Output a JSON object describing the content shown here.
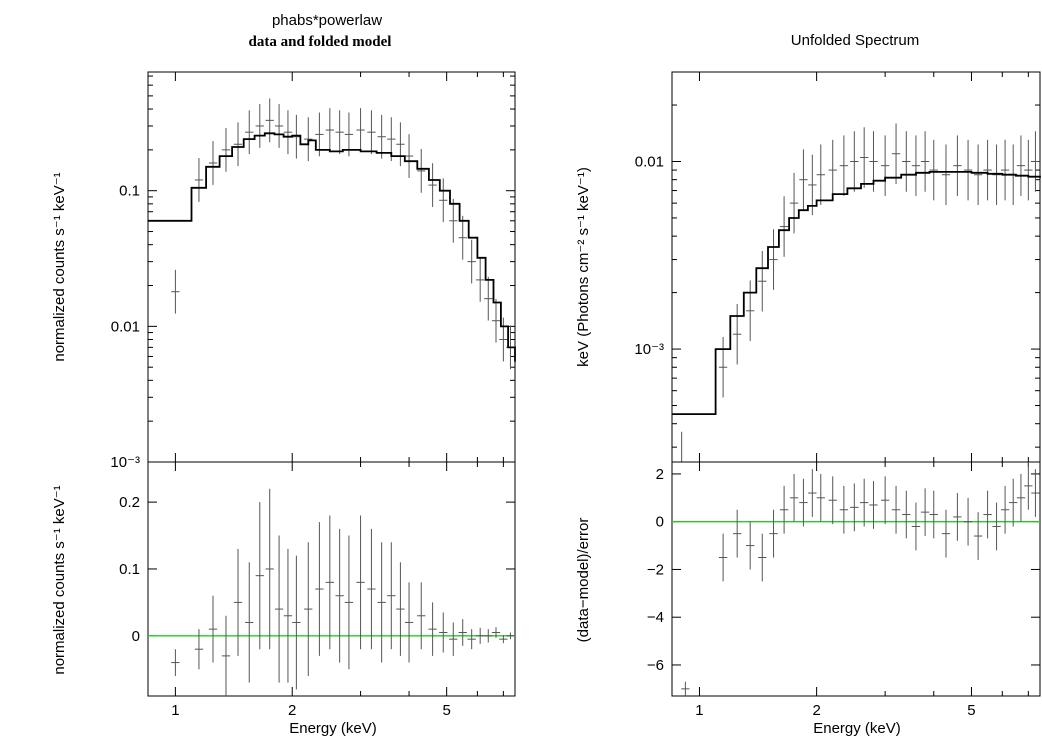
{
  "left_panel": {
    "title_line1": "phabs*powerlaw",
    "title_line2": "data and folded model",
    "top_ylabel": "normalized counts s⁻¹ keV⁻¹",
    "bottom_ylabel": "normalized counts s⁻¹ keV⁻¹",
    "xlabel": "Energy (keV)"
  },
  "right_panel": {
    "title": "Unfolded Spectrum",
    "top_ylabel": "keV (Photons cm⁻² s⁻¹ keV⁻¹)",
    "bottom_ylabel": "(data−model)/error",
    "xlabel": "Energy (keV)"
  },
  "colors": {
    "data": "#555555",
    "model": "#000000",
    "zero_line": "#22cc22"
  },
  "chart_data": [
    {
      "type": "scatter",
      "panel": "left-top",
      "title": "phabs*powerlaw",
      "subtitle": "data and folded model",
      "xlabel": "Energy (keV)",
      "ylabel": "normalized counts s⁻¹ keV⁻¹",
      "xscale": "log",
      "yscale": "log",
      "xlim": [
        0.85,
        7.5
      ],
      "ylim": [
        0.001,
        0.75
      ],
      "xticks": [
        {
          "value": 1,
          "label": "1"
        },
        {
          "value": 2,
          "label": "2"
        },
        {
          "value": 5,
          "label": "5"
        }
      ],
      "yticks": [
        {
          "value": 0.001,
          "label": "10⁻³"
        },
        {
          "value": 0.01,
          "label": "0.01"
        },
        {
          "value": 0.1,
          "label": "0.1"
        }
      ],
      "series": [
        {
          "style": "errorbars",
          "x": [
            1.0,
            1.15,
            1.25,
            1.35,
            1.45,
            1.55,
            1.65,
            1.75,
            1.85,
            1.95,
            2.05,
            2.2,
            2.35,
            2.5,
            2.65,
            2.8,
            3.0,
            3.2,
            3.4,
            3.6,
            3.8,
            4.0,
            4.3,
            4.6,
            4.9,
            5.2,
            5.5,
            5.8,
            6.1,
            6.4,
            6.7,
            7.0,
            7.3
          ],
          "y": [
            0.018,
            0.12,
            0.16,
            0.2,
            0.22,
            0.27,
            0.3,
            0.33,
            0.3,
            0.27,
            0.25,
            0.24,
            0.26,
            0.28,
            0.27,
            0.26,
            0.28,
            0.27,
            0.25,
            0.24,
            0.22,
            0.18,
            0.14,
            0.11,
            0.085,
            0.06,
            0.045,
            0.03,
            0.022,
            0.016,
            0.011,
            0.008,
            0.007
          ]
        },
        {
          "style": "model-step",
          "x": [
            0.85,
            1.1,
            1.2,
            1.3,
            1.4,
            1.5,
            1.6,
            1.7,
            1.8,
            1.9,
            2.0,
            2.1,
            2.2,
            2.3,
            2.5,
            2.7,
            3.0,
            3.3,
            3.6,
            3.9,
            4.2,
            4.5,
            4.8,
            5.1,
            5.4,
            5.7,
            6.0,
            6.3,
            6.6,
            6.9,
            7.2,
            7.5
          ],
          "y": [
            0.06,
            0.105,
            0.15,
            0.18,
            0.21,
            0.24,
            0.255,
            0.265,
            0.26,
            0.25,
            0.255,
            0.22,
            0.235,
            0.2,
            0.195,
            0.2,
            0.195,
            0.19,
            0.18,
            0.165,
            0.145,
            0.12,
            0.1,
            0.08,
            0.06,
            0.045,
            0.032,
            0.022,
            0.015,
            0.01,
            0.007,
            0.0055
          ]
        }
      ]
    },
    {
      "type": "scatter",
      "panel": "left-bottom",
      "xlabel": "Energy (keV)",
      "ylabel": "normalized counts s⁻¹ keV⁻¹",
      "xscale": "log",
      "xlim": [
        0.85,
        7.5
      ],
      "ylim": [
        -0.09,
        0.26
      ],
      "xticks": [
        {
          "value": 1,
          "label": "1"
        },
        {
          "value": 2,
          "label": "2"
        },
        {
          "value": 5,
          "label": "5"
        }
      ],
      "yticks": [
        {
          "value": 0,
          "label": "0"
        },
        {
          "value": 0.1,
          "label": "0.1"
        },
        {
          "value": 0.2,
          "label": "0.2"
        }
      ],
      "reference_line": 0,
      "series": [
        {
          "style": "errorbars",
          "x": [
            1.0,
            1.15,
            1.25,
            1.35,
            1.45,
            1.55,
            1.65,
            1.75,
            1.85,
            1.95,
            2.05,
            2.2,
            2.35,
            2.5,
            2.65,
            2.8,
            3.0,
            3.2,
            3.4,
            3.6,
            3.8,
            4.0,
            4.3,
            4.6,
            4.9,
            5.2,
            5.5,
            5.8,
            6.1,
            6.4,
            6.7,
            7.0,
            7.3
          ],
          "y": [
            -0.04,
            -0.02,
            0.01,
            -0.03,
            0.05,
            0.02,
            0.09,
            0.1,
            0.04,
            0.03,
            0.02,
            0.04,
            0.07,
            0.08,
            0.06,
            0.05,
            0.08,
            0.07,
            0.05,
            0.06,
            0.04,
            0.02,
            0.03,
            0.01,
            0.005,
            -0.005,
            0.005,
            -0.005,
            0.0,
            0.0,
            0.005,
            -0.005,
            0.0
          ],
          "err": [
            0.02,
            0.03,
            0.05,
            0.06,
            0.08,
            0.09,
            0.11,
            0.12,
            0.11,
            0.1,
            0.1,
            0.1,
            0.1,
            0.1,
            0.1,
            0.1,
            0.1,
            0.09,
            0.09,
            0.08,
            0.07,
            0.06,
            0.05,
            0.04,
            0.03,
            0.025,
            0.02,
            0.015,
            0.012,
            0.01,
            0.008,
            0.006,
            0.005
          ]
        }
      ]
    },
    {
      "type": "scatter",
      "panel": "right-top",
      "title": "Unfolded Spectrum",
      "xlabel": "Energy (keV)",
      "ylabel": "keV (Photons cm⁻² s⁻¹ keV⁻¹)",
      "xscale": "log",
      "yscale": "log",
      "xlim": [
        0.85,
        7.5
      ],
      "ylim": [
        0.00025,
        0.03
      ],
      "xticks": [
        {
          "value": 1,
          "label": "1"
        },
        {
          "value": 2,
          "label": "2"
        },
        {
          "value": 5,
          "label": "5"
        }
      ],
      "yticks": [
        {
          "value": 0.001,
          "label": "10⁻³"
        },
        {
          "value": 0.01,
          "label": "0.01"
        }
      ],
      "series": [
        {
          "style": "errorbars",
          "x": [
            0.9,
            1.15,
            1.25,
            1.35,
            1.45,
            1.55,
            1.65,
            1.75,
            1.85,
            1.95,
            2.05,
            2.2,
            2.35,
            2.5,
            2.65,
            2.8,
            3.0,
            3.2,
            3.4,
            3.6,
            3.8,
            4.0,
            4.3,
            4.6,
            4.9,
            5.2,
            5.5,
            5.8,
            6.1,
            6.4,
            6.7,
            7.0,
            7.3
          ],
          "y": [
            0.00025,
            0.0008,
            0.0012,
            0.0016,
            0.0023,
            0.003,
            0.0045,
            0.006,
            0.008,
            0.0075,
            0.0085,
            0.009,
            0.0095,
            0.01,
            0.0105,
            0.01,
            0.0095,
            0.011,
            0.01,
            0.0095,
            0.01,
            0.009,
            0.0085,
            0.0095,
            0.009,
            0.0085,
            0.009,
            0.0085,
            0.009,
            0.0085,
            0.0095,
            0.009,
            0.01
          ]
        },
        {
          "style": "model-step",
          "x": [
            0.85,
            1.1,
            1.2,
            1.3,
            1.4,
            1.5,
            1.6,
            1.7,
            1.8,
            1.9,
            2.0,
            2.2,
            2.4,
            2.6,
            2.8,
            3.0,
            3.3,
            3.6,
            3.9,
            4.2,
            4.5,
            5.0,
            5.5,
            6.0,
            6.5,
            7.0,
            7.5
          ],
          "y": [
            0.00045,
            0.001,
            0.0015,
            0.002,
            0.0027,
            0.0035,
            0.0043,
            0.005,
            0.0055,
            0.0058,
            0.0062,
            0.0067,
            0.0072,
            0.0076,
            0.0079,
            0.0082,
            0.0085,
            0.0087,
            0.0088,
            0.0088,
            0.0088,
            0.0087,
            0.0086,
            0.0085,
            0.0084,
            0.0083,
            0.0082
          ]
        }
      ]
    },
    {
      "type": "scatter",
      "panel": "right-bottom",
      "xlabel": "Energy (keV)",
      "ylabel": "(data−model)/error",
      "xscale": "log",
      "xlim": [
        0.85,
        7.5
      ],
      "ylim": [
        -7.3,
        2.5
      ],
      "xticks": [
        {
          "value": 1,
          "label": "1"
        },
        {
          "value": 2,
          "label": "2"
        },
        {
          "value": 5,
          "label": "5"
        }
      ],
      "yticks": [
        {
          "value": -6,
          "label": "−6"
        },
        {
          "value": -4,
          "label": "−4"
        },
        {
          "value": -2,
          "label": "−2"
        },
        {
          "value": 0,
          "label": "0"
        },
        {
          "value": 2,
          "label": "2"
        }
      ],
      "reference_line": 0,
      "series": [
        {
          "style": "errorbars",
          "x": [
            0.92,
            1.15,
            1.25,
            1.35,
            1.45,
            1.55,
            1.65,
            1.75,
            1.85,
            1.95,
            2.05,
            2.2,
            2.35,
            2.5,
            2.65,
            2.8,
            3.0,
            3.2,
            3.4,
            3.6,
            3.8,
            4.0,
            4.3,
            4.6,
            4.9,
            5.2,
            5.5,
            5.8,
            6.1,
            6.4,
            6.7,
            7.0,
            7.3
          ],
          "y": [
            -7.0,
            -1.5,
            -0.5,
            -1.0,
            -1.5,
            -0.5,
            0.5,
            1.0,
            0.8,
            1.2,
            1.0,
            0.9,
            0.5,
            0.6,
            0.8,
            0.7,
            0.9,
            0.5,
            0.3,
            -0.2,
            0.4,
            0.3,
            -0.5,
            0.2,
            0.0,
            -0.6,
            0.3,
            -0.2,
            0.5,
            0.8,
            1.0,
            1.5,
            1.2
          ],
          "err": [
            0.3,
            1.0,
            1.0,
            1.0,
            1.0,
            1.0,
            1.0,
            1.0,
            1.0,
            1.0,
            1.0,
            1.0,
            1.0,
            1.0,
            1.0,
            1.0,
            1.0,
            1.0,
            1.0,
            1.0,
            1.0,
            1.0,
            1.0,
            1.0,
            1.0,
            1.0,
            1.0,
            1.0,
            1.0,
            1.0,
            1.0,
            1.0,
            1.0
          ]
        }
      ]
    }
  ]
}
